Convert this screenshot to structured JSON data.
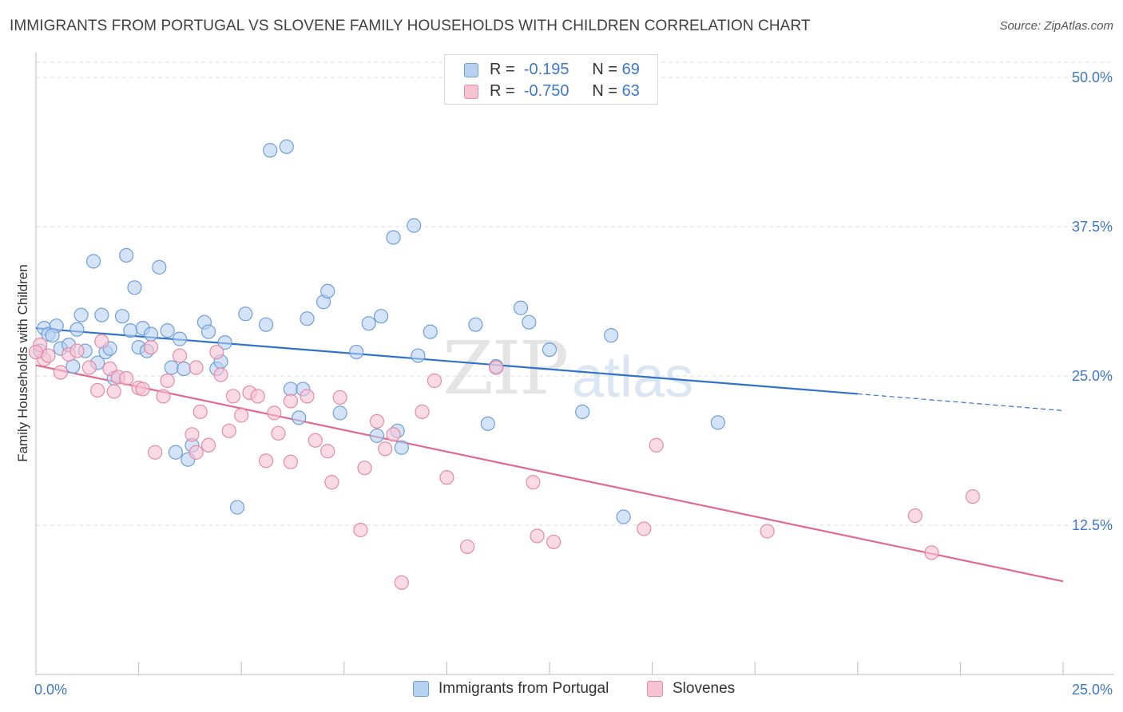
{
  "title": "IMMIGRANTS FROM PORTUGAL VS SLOVENE FAMILY HOUSEHOLDS WITH CHILDREN CORRELATION CHART",
  "source": "Source: ZipAtlas.com",
  "watermark": {
    "zip": "ZIP",
    "atlas": "atlas"
  },
  "legend_top": [
    {
      "r_label": "R =",
      "r_value": "-0.195",
      "n_label": "N =",
      "n_value": "69"
    },
    {
      "r_label": "R =",
      "r_value": "-0.750",
      "n_label": "N =",
      "n_value": "63"
    }
  ],
  "colors": {
    "blue_fill": "#b7d1f1",
    "blue_stroke": "#6f9fd8",
    "blue_line": "#2f72c9",
    "pink_fill": "#f7c3d3",
    "pink_stroke": "#e58aa8",
    "pink_line": "#e2688f",
    "grid": "#dddddd",
    "tick_text": "#3e78c8"
  },
  "chart_data": {
    "type": "scatter",
    "title": "IMMIGRANTS FROM PORTUGAL VS SLOVENE FAMILY HOUSEHOLDS WITH CHILDREN CORRELATION CHART",
    "xlabel": "",
    "ylabel": "Family Households with Children",
    "xlim": [
      0,
      25
    ],
    "ylim": [
      0,
      50
    ],
    "x_tick_labels": [
      "0.0%",
      "25.0%"
    ],
    "y_ticks": [
      12.5,
      25.0,
      37.5,
      50.0
    ],
    "y_tick_labels": [
      "12.5%",
      "25.0%",
      "37.5%",
      "50.0%"
    ],
    "grid": "horizontal dashed",
    "legend_position": "top-center and bottom",
    "series": [
      {
        "name": "Immigrants from Portugal",
        "r": -0.195,
        "n": 69,
        "trend": {
          "x0": 0,
          "y0": 29.0,
          "x1": 20,
          "y1": 23.5,
          "dashed_to_x": 25,
          "dashed_to_y": 22.1
        },
        "points": [
          [
            0.1,
            27.1
          ],
          [
            0.2,
            29.0
          ],
          [
            0.3,
            28.5
          ],
          [
            0.5,
            29.2
          ],
          [
            0.4,
            28.4
          ],
          [
            0.6,
            27.3
          ],
          [
            1.0,
            28.9
          ],
          [
            0.8,
            27.6
          ],
          [
            0.9,
            25.8
          ],
          [
            1.1,
            30.1
          ],
          [
            1.2,
            27.1
          ],
          [
            1.4,
            34.6
          ],
          [
            1.5,
            26.1
          ],
          [
            1.6,
            30.1
          ],
          [
            1.7,
            27.0
          ],
          [
            1.8,
            27.3
          ],
          [
            1.9,
            24.8
          ],
          [
            2.1,
            30.0
          ],
          [
            2.2,
            35.1
          ],
          [
            2.3,
            28.8
          ],
          [
            2.4,
            32.4
          ],
          [
            2.5,
            27.4
          ],
          [
            2.6,
            29.0
          ],
          [
            2.7,
            27.1
          ],
          [
            2.8,
            28.5
          ],
          [
            3.0,
            34.1
          ],
          [
            3.2,
            28.8
          ],
          [
            3.3,
            25.7
          ],
          [
            3.4,
            18.6
          ],
          [
            3.5,
            28.1
          ],
          [
            3.6,
            25.6
          ],
          [
            3.7,
            18.0
          ],
          [
            3.8,
            19.2
          ],
          [
            4.1,
            29.5
          ],
          [
            4.2,
            28.7
          ],
          [
            4.4,
            25.6
          ],
          [
            4.5,
            26.2
          ],
          [
            4.6,
            27.8
          ],
          [
            4.9,
            14.0
          ],
          [
            5.1,
            30.2
          ],
          [
            5.6,
            29.3
          ],
          [
            5.7,
            43.9
          ],
          [
            6.1,
            44.2
          ],
          [
            6.2,
            23.9
          ],
          [
            6.4,
            21.5
          ],
          [
            6.5,
            23.9
          ],
          [
            6.6,
            29.8
          ],
          [
            7.0,
            31.2
          ],
          [
            7.1,
            32.1
          ],
          [
            7.4,
            21.9
          ],
          [
            7.8,
            27.0
          ],
          [
            8.1,
            29.4
          ],
          [
            8.3,
            20.0
          ],
          [
            8.4,
            30.0
          ],
          [
            8.7,
            36.6
          ],
          [
            8.8,
            20.4
          ],
          [
            8.9,
            19.0
          ],
          [
            9.2,
            37.6
          ],
          [
            9.3,
            26.7
          ],
          [
            9.6,
            28.7
          ],
          [
            10.7,
            29.3
          ],
          [
            11.0,
            21.0
          ],
          [
            11.2,
            25.8
          ],
          [
            11.8,
            30.7
          ],
          [
            12.0,
            29.5
          ],
          [
            12.5,
            27.2
          ],
          [
            13.3,
            22.0
          ],
          [
            14.0,
            28.4
          ],
          [
            14.3,
            13.2
          ],
          [
            16.6,
            21.1
          ]
        ]
      },
      {
        "name": "Slovenes",
        "r": -0.75,
        "n": 63,
        "trend": {
          "x0": 0,
          "y0": 25.9,
          "x1": 25,
          "y1": 7.8
        },
        "points": [
          [
            0.1,
            27.6
          ],
          [
            0.2,
            26.4
          ],
          [
            0.3,
            26.7
          ],
          [
            0.6,
            25.3
          ],
          [
            0.8,
            26.8
          ],
          [
            1.0,
            27.1
          ],
          [
            1.3,
            25.7
          ],
          [
            1.5,
            23.8
          ],
          [
            1.6,
            27.9
          ],
          [
            1.8,
            25.6
          ],
          [
            1.9,
            23.7
          ],
          [
            2.0,
            24.9
          ],
          [
            2.2,
            24.8
          ],
          [
            2.5,
            24.0
          ],
          [
            2.6,
            23.9
          ],
          [
            2.8,
            27.4
          ],
          [
            2.9,
            18.6
          ],
          [
            3.1,
            23.3
          ],
          [
            3.2,
            24.6
          ],
          [
            3.5,
            26.7
          ],
          [
            3.8,
            20.1
          ],
          [
            3.9,
            18.6
          ],
          [
            3.9,
            25.7
          ],
          [
            4.0,
            22.0
          ],
          [
            4.2,
            19.2
          ],
          [
            4.4,
            27.0
          ],
          [
            4.5,
            25.1
          ],
          [
            4.7,
            20.4
          ],
          [
            4.8,
            23.3
          ],
          [
            5.0,
            21.7
          ],
          [
            5.2,
            23.6
          ],
          [
            5.4,
            23.3
          ],
          [
            5.6,
            17.9
          ],
          [
            5.8,
            21.9
          ],
          [
            5.9,
            20.2
          ],
          [
            6.2,
            22.9
          ],
          [
            6.2,
            17.8
          ],
          [
            6.6,
            23.3
          ],
          [
            6.8,
            19.6
          ],
          [
            7.1,
            18.7
          ],
          [
            7.2,
            16.1
          ],
          [
            7.4,
            23.2
          ],
          [
            7.9,
            12.1
          ],
          [
            8.0,
            17.3
          ],
          [
            8.3,
            21.2
          ],
          [
            8.5,
            18.9
          ],
          [
            8.7,
            20.1
          ],
          [
            8.9,
            7.7
          ],
          [
            9.4,
            22.0
          ],
          [
            9.7,
            24.6
          ],
          [
            10.0,
            16.5
          ],
          [
            10.5,
            10.7
          ],
          [
            11.2,
            25.7
          ],
          [
            12.1,
            16.1
          ],
          [
            12.2,
            11.6
          ],
          [
            12.6,
            11.1
          ],
          [
            14.8,
            12.2
          ],
          [
            15.1,
            19.2
          ],
          [
            17.8,
            12.0
          ],
          [
            21.4,
            13.3
          ],
          [
            21.8,
            10.2
          ],
          [
            22.8,
            14.9
          ],
          [
            0.0,
            27.0
          ]
        ]
      }
    ]
  },
  "legend_bottom": [
    {
      "label": "Immigrants from Portugal"
    },
    {
      "label": "Slovenes"
    }
  ]
}
